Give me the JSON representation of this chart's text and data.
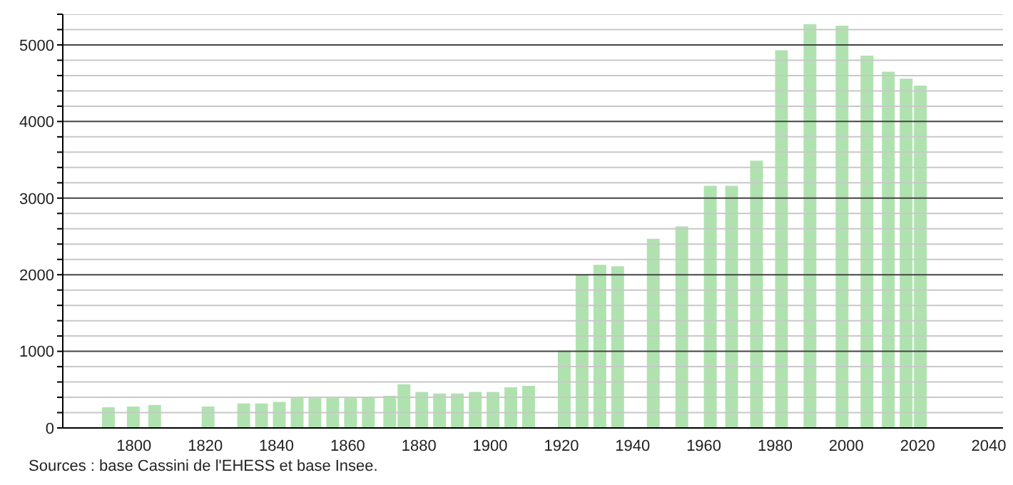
{
  "chart_data": {
    "type": "bar",
    "color": "#b0e2b0",
    "x": [
      1793,
      1800,
      1806,
      1821,
      1831,
      1836,
      1841,
      1846,
      1851,
      1856,
      1861,
      1866,
      1872,
      1876,
      1881,
      1886,
      1891,
      1896,
      1901,
      1906,
      1911,
      1921,
      1926,
      1931,
      1936,
      1946,
      1954,
      1962,
      1968,
      1975,
      1982,
      1990,
      1999,
      2006,
      2012,
      2017,
      2021
    ],
    "values": [
      270,
      280,
      300,
      280,
      320,
      320,
      340,
      390,
      390,
      390,
      390,
      390,
      420,
      570,
      470,
      450,
      450,
      470,
      470,
      530,
      550,
      1010,
      2000,
      2130,
      2110,
      2470,
      2630,
      3160,
      3160,
      3490,
      4930,
      5270,
      5250,
      4860,
      4650,
      4560,
      4470
    ],
    "xlim": [
      1780,
      2044
    ],
    "xticks": [
      1800,
      1820,
      1840,
      1860,
      1880,
      1900,
      1920,
      1940,
      1960,
      1980,
      2000,
      2020,
      2040
    ],
    "ylim": [
      0,
      5400
    ],
    "yticks": [
      0,
      {
        "value": 200,
        "label": null
      },
      {
        "value": 400,
        "label": null
      },
      {
        "value": 600,
        "label": null
      },
      {
        "value": 800,
        "label": null
      },
      1000,
      {
        "value": 1200,
        "label": null
      },
      {
        "value": 1400,
        "label": null
      },
      {
        "value": 1600,
        "label": null
      },
      {
        "value": 1800,
        "label": null
      },
      2000,
      {
        "value": 2200,
        "label": null
      },
      {
        "value": 2400,
        "label": null
      },
      {
        "value": 2600,
        "label": null
      },
      {
        "value": 2800,
        "label": null
      },
      3000,
      {
        "value": 3200,
        "label": null
      },
      {
        "value": 3400,
        "label": null
      },
      {
        "value": 3600,
        "label": null
      },
      {
        "value": 3800,
        "label": null
      },
      4000,
      {
        "value": 4200,
        "label": null
      },
      {
        "value": 4400,
        "label": null
      },
      {
        "value": 4600,
        "label": null
      },
      {
        "value": 4800,
        "label": null
      },
      5000,
      {
        "value": 5200,
        "label": null
      },
      {
        "value": 5400,
        "label": null
      }
    ],
    "grid": "y",
    "annotations": [
      "Sources : base Cassini de l'EHESS et base Insee."
    ]
  }
}
